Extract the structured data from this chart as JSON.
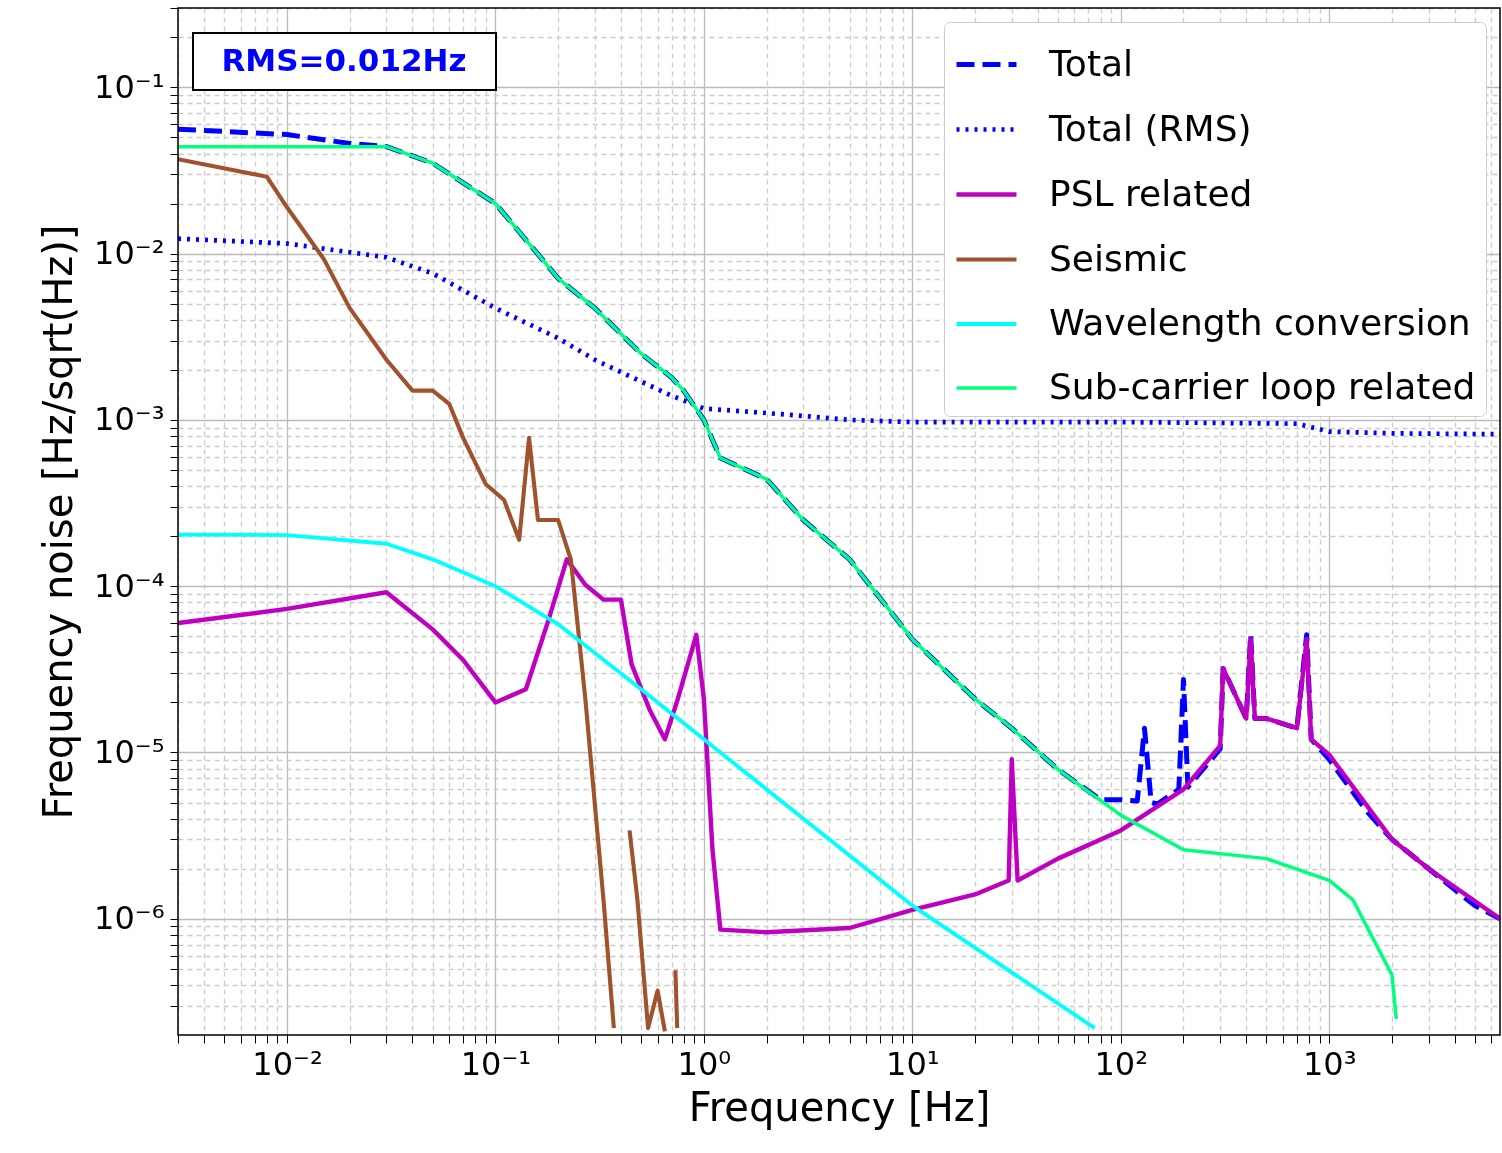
{
  "chart_data": {
    "type": "line",
    "xlabel": "Frequency [Hz]",
    "ylabel": "Frequency noise [Hz/sqrt(Hz)]",
    "log": "xy",
    "grid": true,
    "legend": "top right",
    "annotations": [
      "RMS=0.012Hz"
    ],
    "xlim": [
      0.003,
      6600
    ],
    "ylim": [
      2e-07,
      0.3
    ],
    "xticks": [
      {
        "value": 0.003,
        "label": null
      },
      {
        "value": 0.004,
        "label": null
      },
      {
        "value": 0.005,
        "label": null
      },
      {
        "value": 0.006,
        "label": null
      },
      {
        "value": 0.007,
        "label": null
      },
      {
        "value": 0.008,
        "label": null
      },
      {
        "value": 0.009,
        "label": null
      },
      {
        "value": 0.01,
        "label": "10⁻²"
      },
      {
        "value": 0.02,
        "label": null
      },
      {
        "value": 0.03,
        "label": null
      },
      {
        "value": 0.04,
        "label": null
      },
      {
        "value": 0.05,
        "label": null
      },
      {
        "value": 0.06,
        "label": null
      },
      {
        "value": 0.07,
        "label": null
      },
      {
        "value": 0.08,
        "label": null
      },
      {
        "value": 0.09,
        "label": null
      },
      {
        "value": 0.1,
        "label": "10⁻¹"
      },
      {
        "value": 0.2,
        "label": null
      },
      {
        "value": 0.3,
        "label": null
      },
      {
        "value": 0.4,
        "label": null
      },
      {
        "value": 0.5,
        "label": null
      },
      {
        "value": 0.6,
        "label": null
      },
      {
        "value": 0.7,
        "label": null
      },
      {
        "value": 0.8,
        "label": null
      },
      {
        "value": 0.9,
        "label": null
      },
      {
        "value": 1,
        "label": "10⁰"
      },
      {
        "value": 2,
        "label": null
      },
      {
        "value": 3,
        "label": null
      },
      {
        "value": 4,
        "label": null
      },
      {
        "value": 5,
        "label": null
      },
      {
        "value": 6,
        "label": null
      },
      {
        "value": 7,
        "label": null
      },
      {
        "value": 8,
        "label": null
      },
      {
        "value": 9,
        "label": null
      },
      {
        "value": 10,
        "label": "10¹"
      },
      {
        "value": 20,
        "label": null
      },
      {
        "value": 30,
        "label": null
      },
      {
        "value": 40,
        "label": null
      },
      {
        "value": 50,
        "label": null
      },
      {
        "value": 60,
        "label": null
      },
      {
        "value": 70,
        "label": null
      },
      {
        "value": 80,
        "label": null
      },
      {
        "value": 90,
        "label": null
      },
      {
        "value": 100,
        "label": "10²"
      },
      {
        "value": 200,
        "label": null
      },
      {
        "value": 300,
        "label": null
      },
      {
        "value": 400,
        "label": null
      },
      {
        "value": 500,
        "label": null
      },
      {
        "value": 600,
        "label": null
      },
      {
        "value": 700,
        "label": null
      },
      {
        "value": 800,
        "label": null
      },
      {
        "value": 900,
        "label": null
      },
      {
        "value": 1000,
        "label": "10³"
      },
      {
        "value": 2000,
        "label": null
      },
      {
        "value": 3000,
        "label": null
      },
      {
        "value": 4000,
        "label": null
      },
      {
        "value": 5000,
        "label": null
      },
      {
        "value": 6000,
        "label": null
      }
    ],
    "yticks": [
      {
        "value": 3e-07,
        "label": null
      },
      {
        "value": 4e-07,
        "label": null
      },
      {
        "value": 5e-07,
        "label": null
      },
      {
        "value": 6e-07,
        "label": null
      },
      {
        "value": 7e-07,
        "label": null
      },
      {
        "value": 8e-07,
        "label": null
      },
      {
        "value": 9e-07,
        "label": null
      },
      {
        "value": 1e-06,
        "label": "10⁻⁶"
      },
      {
        "value": 2e-06,
        "label": null
      },
      {
        "value": 3e-06,
        "label": null
      },
      {
        "value": 4e-06,
        "label": null
      },
      {
        "value": 5e-06,
        "label": null
      },
      {
        "value": 6e-06,
        "label": null
      },
      {
        "value": 7e-06,
        "label": null
      },
      {
        "value": 8e-06,
        "label": null
      },
      {
        "value": 9e-06,
        "label": null
      },
      {
        "value": 1e-05,
        "label": "10⁻⁵"
      },
      {
        "value": 2e-05,
        "label": null
      },
      {
        "value": 3e-05,
        "label": null
      },
      {
        "value": 4e-05,
        "label": null
      },
      {
        "value": 5e-05,
        "label": null
      },
      {
        "value": 6e-05,
        "label": null
      },
      {
        "value": 7e-05,
        "label": null
      },
      {
        "value": 8e-05,
        "label": null
      },
      {
        "value": 9e-05,
        "label": null
      },
      {
        "value": 0.0001,
        "label": "10⁻⁴"
      },
      {
        "value": 0.0002,
        "label": null
      },
      {
        "value": 0.0003,
        "label": null
      },
      {
        "value": 0.0004,
        "label": null
      },
      {
        "value": 0.0005,
        "label": null
      },
      {
        "value": 0.0006,
        "label": null
      },
      {
        "value": 0.0007,
        "label": null
      },
      {
        "value": 0.0008,
        "label": null
      },
      {
        "value": 0.0009,
        "label": null
      },
      {
        "value": 0.001,
        "label": "10⁻³"
      },
      {
        "value": 0.002,
        "label": null
      },
      {
        "value": 0.003,
        "label": null
      },
      {
        "value": 0.004,
        "label": null
      },
      {
        "value": 0.005,
        "label": null
      },
      {
        "value": 0.006,
        "label": null
      },
      {
        "value": 0.007,
        "label": null
      },
      {
        "value": 0.008,
        "label": null
      },
      {
        "value": 0.009,
        "label": null
      },
      {
        "value": 0.01,
        "label": "10⁻²"
      },
      {
        "value": 0.02,
        "label": null
      },
      {
        "value": 0.03,
        "label": null
      },
      {
        "value": 0.04,
        "label": null
      },
      {
        "value": 0.05,
        "label": null
      },
      {
        "value": 0.06,
        "label": null
      },
      {
        "value": 0.07,
        "label": null
      },
      {
        "value": 0.08,
        "label": null
      },
      {
        "value": 0.09,
        "label": null
      },
      {
        "value": 0.1,
        "label": "10⁻¹"
      },
      {
        "value": 0.2,
        "label": null
      },
      {
        "value": 0.3,
        "label": null
      }
    ],
    "series": [
      {
        "name": "Total",
        "color": "#0000ff",
        "line_style": "dashed",
        "x": [
          0.003,
          0.01,
          0.02,
          0.03,
          0.05,
          0.1,
          0.2,
          0.3,
          0.5,
          0.7,
          0.8,
          1,
          1.2,
          2,
          3,
          5,
          10,
          20,
          30,
          50,
          80,
          100,
          120,
          130,
          140,
          150,
          190,
          200,
          210,
          300,
          310,
          400,
          420,
          440,
          500,
          700,
          780,
          820,
          1000,
          1500,
          2000,
          3000,
          5000,
          6600
        ],
        "values": [
          0.056,
          0.052,
          0.046,
          0.044,
          0.035,
          0.02,
          0.0071,
          0.0047,
          0.0025,
          0.0018,
          0.0015,
          0.001,
          0.00059,
          0.00044,
          0.00025,
          0.000145,
          4.8e-05,
          2.1e-05,
          1.4e-05,
          7.9e-06,
          5.2e-06,
          5.2e-06,
          5.1e-06,
          1.4e-05,
          5e-06,
          4.9e-06,
          6e-06,
          2.75e-05,
          6.2e-06,
          1.05e-05,
          3.2e-05,
          1.6e-05,
          5.1e-05,
          1.6e-05,
          1.6e-05,
          1.4e-05,
          5.1e-05,
          1.2e-05,
          9.1e-06,
          4.5e-06,
          3e-06,
          2e-06,
          1.2e-06,
          1e-06
        ]
      },
      {
        "name": "Total (RMS)",
        "color": "#0000ff",
        "line_style": "dotted",
        "x": [
          0.003,
          0.01,
          0.03,
          0.05,
          0.1,
          0.2,
          0.3,
          0.5,
          0.7,
          1,
          2,
          5,
          10,
          100,
          700,
          1000,
          2000,
          6600
        ],
        "values": [
          0.0123,
          0.0115,
          0.0095,
          0.0076,
          0.0047,
          0.0031,
          0.0023,
          0.0017,
          0.0014,
          0.00117,
          0.0011,
          0.001,
          0.00097,
          0.00097,
          0.00095,
          0.00085,
          0.00083,
          0.00082
        ]
      },
      {
        "name": "PSL related",
        "color": "#c000c0",
        "line_style": "solid",
        "x": [
          0.003,
          0.01,
          0.03,
          0.05,
          0.07,
          0.1,
          0.14,
          0.18,
          0.22,
          0.27,
          0.33,
          0.4,
          0.45,
          0.55,
          0.65,
          0.75,
          0.92,
          1.0,
          1.1,
          1.2,
          2,
          5,
          10,
          20,
          29,
          30,
          32,
          50,
          100,
          200,
          300,
          310,
          400,
          420,
          440,
          500,
          700,
          780,
          820,
          1000,
          2000,
          3000,
          6600
        ],
        "values": [
          6e-05,
          7.3e-05,
          9.2e-05,
          5.5e-05,
          3.6e-05,
          2e-05,
          2.4e-05,
          6.3e-05,
          0.000145,
          0.000102,
          8.3e-05,
          8.3e-05,
          3.4e-05,
          1.8e-05,
          1.2e-05,
          2.1e-05,
          5.1e-05,
          2.1e-05,
          2.6e-06,
          8.6e-07,
          8.3e-07,
          8.8e-07,
          1.13e-06,
          1.4e-06,
          1.7e-06,
          9.1e-06,
          1.7e-06,
          2.3e-06,
          3.4e-06,
          6e-06,
          1.1e-05,
          3.2e-05,
          1.6e-05,
          4.8e-05,
          1.6e-05,
          1.6e-05,
          1.4e-05,
          4.8e-05,
          1.2e-05,
          9.7e-06,
          3e-06,
          2e-06,
          1e-06
        ]
      },
      {
        "name": "Seismic",
        "color": "#a0522d",
        "line_style": "solid",
        "x": [
          0.003,
          0.008,
          0.01,
          0.015,
          0.02,
          0.03,
          0.04,
          0.05,
          0.06,
          0.07,
          0.09,
          0.11,
          0.13,
          0.145,
          0.16,
          0.18,
          0.2,
          0.23,
          0.27,
          0.33,
          0.37,
          0.4,
          0.44,
          0.48,
          0.54,
          0.6,
          0.65,
          0.7,
          0.73,
          0.745
        ],
        "values": [
          0.037,
          0.029,
          0.019,
          0.0093,
          0.0047,
          0.0023,
          0.0015,
          0.0015,
          0.00125,
          0.00078,
          0.00041,
          0.00033,
          0.00019,
          0.00078,
          0.00025,
          0.00025,
          0.00025,
          0.000145,
          2.1e-05,
          1.3e-06,
          2.2e-07,
          null,
          3.4e-06,
          1.3e-06,
          2.2e-07,
          3.7e-07,
          2.1e-07,
          null,
          4.9e-07,
          2.2e-07
        ]
      },
      {
        "name": "Wavelength conversion",
        "color": "#00ffff",
        "line_style": "solid",
        "x": [
          0.003,
          0.01,
          0.03,
          0.05,
          0.1,
          0.2,
          0.5,
          1,
          10,
          75
        ],
        "values": [
          0.000204,
          0.000203,
          0.00018,
          0.000145,
          0.0001,
          5.9e-05,
          2.4e-05,
          1.2e-05,
          1.2e-06,
          2.2e-07
        ]
      },
      {
        "name": "Sub-carrier loop related",
        "color": "#00ff7f",
        "line_style": "solid",
        "x": [
          0.003,
          0.03,
          0.05,
          0.1,
          0.2,
          0.3,
          0.5,
          0.7,
          0.8,
          1,
          1.2,
          2,
          3,
          5,
          10,
          20,
          30,
          50,
          100,
          200,
          500,
          1000,
          1300,
          2000,
          2100
        ],
        "values": [
          0.044,
          0.044,
          0.035,
          0.02,
          0.0071,
          0.0047,
          0.0025,
          0.0018,
          0.0015,
          0.001,
          0.00059,
          0.00044,
          0.00025,
          0.000145,
          4.8e-05,
          2.1e-05,
          1.4e-05,
          7.9e-06,
          4.2e-06,
          2.6e-06,
          2.3e-06,
          1.7e-06,
          1.3e-06,
          4.6e-07,
          2.5e-07
        ]
      }
    ]
  }
}
